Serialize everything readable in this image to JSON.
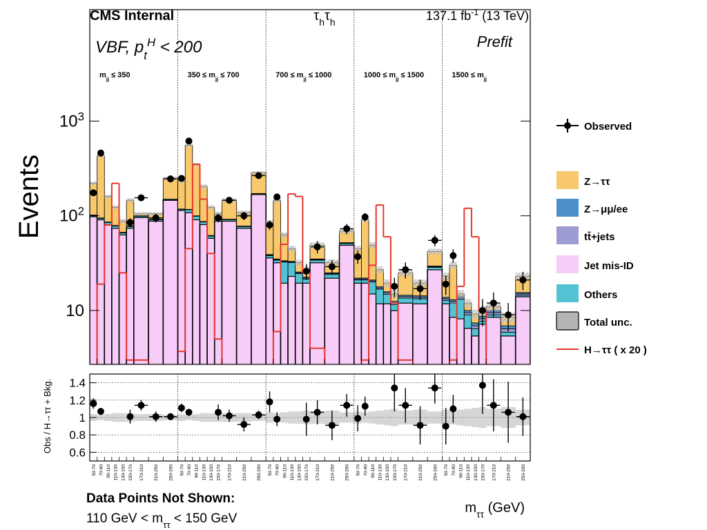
{
  "chart_data": {
    "type": "stacked-histogram",
    "experiment": "CMS Internal",
    "channel": [
      {
        "text": "τ"
      },
      {
        "text": "h",
        "shift": "sub"
      },
      {
        "text": "τ"
      },
      {
        "text": "h",
        "shift": "sub"
      }
    ],
    "lumi": [
      {
        "text": "137.1 fb"
      },
      {
        "text": "-1",
        "shift": "sup"
      },
      {
        "text": " (13 TeV)"
      }
    ],
    "category": [
      {
        "text": "VBF, p"
      },
      {
        "text": "t",
        "shift": "sub"
      },
      {
        "text": "H",
        "shift": "sup"
      },
      {
        "text": " < 200"
      }
    ],
    "stage": "Prefit",
    "ylabel": "Events",
    "ratio_ylabel": "Obs / H→ττ + Bkg.",
    "xlabel": [
      {
        "text": "m"
      },
      {
        "text": "ττ",
        "shift": "sub"
      },
      {
        "text": " (GeV)"
      }
    ],
    "note_title": "Data Points Not Shown:",
    "note": [
      {
        "text": "110 GeV < m"
      },
      {
        "text": "ττ",
        "shift": "sub"
      },
      {
        "text": " < 150 GeV"
      }
    ],
    "regions": [
      [
        {
          "text": "m"
        },
        {
          "text": "jj",
          "shift": "sub"
        },
        {
          "text": " ≤ 350"
        }
      ],
      [
        {
          "text": "350 ≤ m"
        },
        {
          "text": "jj",
          "shift": "sub"
        },
        {
          "text": " ≤ 700"
        }
      ],
      [
        {
          "text": "700 ≤ m"
        },
        {
          "text": "jj",
          "shift": "sub"
        },
        {
          "text": " ≤ 1000"
        }
      ],
      [
        {
          "text": "1000 ≤ m"
        },
        {
          "text": "jj",
          "shift": "sub"
        },
        {
          "text": " ≤ 1500"
        }
      ],
      [
        {
          "text": "1500 ≤ m"
        },
        {
          "text": "jj",
          "shift": "sub"
        }
      ]
    ],
    "bin_edges": [
      50,
      70,
      90,
      110,
      130,
      150,
      170,
      210,
      250,
      290
    ],
    "bin_labels": [
      "50-70",
      "70-90",
      "90-110",
      "110-130",
      "130-150",
      "150-170",
      "170-210",
      "210-250",
      "250-290"
    ],
    "log_y": true,
    "ylim": [
      2.7,
      15000
    ],
    "yticks": [
      10,
      {
        "value": 100,
        "label": [
          {
            "text": "10"
          },
          {
            "text": "2",
            "shift": "sup"
          }
        ]
      },
      {
        "value": 1000,
        "label": [
          {
            "text": "10"
          },
          {
            "text": "3",
            "shift": "sup"
          }
        ]
      }
    ],
    "ratio_ylim": [
      0.5,
      1.5
    ],
    "ratio_yticks": [
      0.6,
      0.8,
      1,
      1.2,
      1.4
    ],
    "ratio_grid": true,
    "series": [
      {
        "name": "Z→ττ",
        "color": "#f8c86c",
        "values": [
          [
            118,
            335,
            74,
            44,
            21,
            68,
            5,
            13,
            100
          ],
          [
            115,
            439,
            248,
            117,
            61,
            13,
            54,
            30,
            113
          ],
          [
            46,
            111,
            29.5,
            12,
            6.5,
            4.5,
            14,
            7,
            17
          ],
          [
            23,
            69,
            28,
            9.2,
            3.7,
            2.5,
            10.5,
            5.2,
            12.5
          ],
          [
            9.2,
            17,
            0.8,
            2,
            1.8,
            1.3,
            1,
            1.6,
            7.5
          ]
        ]
      },
      {
        "name": "Z→μμ/ee",
        "color": "#4b8fc8",
        "values": [
          [
            0.5,
            0.5,
            0.5,
            0.5,
            0.5,
            0.5,
            0.5,
            0.5,
            0.5
          ],
          [
            0.5,
            0.5,
            0.5,
            0.5,
            0.5,
            0.5,
            0.5,
            0.5,
            0.5
          ],
          [
            0.5,
            0.5,
            0.5,
            0.5,
            0.5,
            0.5,
            0.5,
            0.5,
            0.5
          ],
          [
            0.5,
            0.5,
            0.5,
            0.5,
            0.5,
            0.5,
            0.5,
            0.5,
            0.5
          ],
          [
            0.5,
            0.5,
            0.5,
            0.5,
            0.5,
            0.5,
            0.5,
            0.5,
            0.5
          ]
        ]
      },
      {
        "name": "tt̄+jets",
        "color": "#9c9cd2",
        "values": [
          [
            0.5,
            0.5,
            0.5,
            0.5,
            0.5,
            0.5,
            0.5,
            0.5,
            0.5
          ],
          [
            0.5,
            0.5,
            0.5,
            0.5,
            0.5,
            0.5,
            0.5,
            0.5,
            0.5
          ],
          [
            0.5,
            0.5,
            0.5,
            0.5,
            0.5,
            0.5,
            0.5,
            0.5,
            0.5
          ],
          [
            0.5,
            0.5,
            0.5,
            0.5,
            0.5,
            0.5,
            0.5,
            0.5,
            0.5
          ],
          [
            0.5,
            0.5,
            0.5,
            0.5,
            0.5,
            0.5,
            0.5,
            0.5,
            0.5
          ]
        ]
      },
      {
        "name": "Jet mis-ID",
        "color": "#f8ccf8",
        "values": [
          [
            98,
            91,
            81,
            74,
            63,
            74,
            96,
            88,
            146
          ],
          [
            114,
            108,
            91,
            81,
            58,
            88,
            88,
            74,
            168
          ],
          [
            36,
            32,
            19.5,
            23,
            19.5,
            19.5,
            32,
            22,
            49
          ],
          [
            19.5,
            19.5,
            15,
            11.8,
            11.8,
            10,
            12,
            11.8,
            27
          ],
          [
            11.8,
            8.5,
            8.2,
            6.5,
            5.4,
            7.2,
            8.5,
            5.4,
            14
          ]
        ]
      },
      {
        "name": "Others",
        "color": "#52c3d4",
        "values": [
          [
            3,
            3,
            4,
            4,
            3,
            3,
            3,
            3,
            3
          ],
          [
            3,
            8,
            8,
            5,
            3,
            3,
            3,
            3,
            3
          ],
          [
            2,
            2,
            13,
            9,
            5,
            2,
            2,
            2,
            2
          ],
          [
            1.5,
            1.5,
            5,
            5,
            3,
            1.5,
            1.5,
            1.5,
            1.5
          ],
          [
            1,
            3.5,
            5,
            2.5,
            1,
            0.5,
            0.5,
            0.5,
            0.5
          ]
        ]
      }
    ],
    "uncertainty": {
      "name": "Total unc.",
      "color": "#b4b4b4",
      "values": [
        [
          0.04,
          0.03,
          0.04,
          0.05,
          0.05,
          0.05,
          0.04,
          0.04,
          0.03
        ],
        [
          0.04,
          0.03,
          0.04,
          0.05,
          0.05,
          0.05,
          0.05,
          0.05,
          0.04
        ],
        [
          0.06,
          0.05,
          0.06,
          0.07,
          0.07,
          0.08,
          0.07,
          0.08,
          0.06
        ],
        [
          0.07,
          0.06,
          0.07,
          0.08,
          0.09,
          0.1,
          0.08,
          0.09,
          0.07
        ],
        [
          0.09,
          0.08,
          0.09,
          0.1,
          0.11,
          0.12,
          0.1,
          0.12,
          0.09
        ]
      ]
    },
    "signal": {
      "name": "H→ττ ( x 20 )",
      "color": "#e8352c",
      "values": [
        [
          1,
          19,
          80,
          220,
          25,
          3,
          3,
          1,
          1
        ],
        [
          3.7,
          45,
          350,
          150,
          40,
          5,
          1,
          1,
          1
        ],
        [
          1,
          6,
          50,
          170,
          160,
          25,
          4,
          1,
          1
        ],
        [
          1,
          3,
          30,
          130,
          60,
          12,
          3,
          1,
          1
        ],
        [
          1,
          3,
          18,
          120,
          60,
          10,
          2.5,
          1,
          1
        ]
      ]
    },
    "observed": {
      "name": "Observed",
      "color": "#000000",
      "values": [
        [
          175,
          460,
          null,
          null,
          null,
          85,
          155,
          95,
          245
        ],
        [
          248,
          615,
          null,
          null,
          null,
          95,
          146,
          100,
          266
        ],
        [
          80,
          158,
          null,
          null,
          null,
          26,
          47,
          29,
          73
        ],
        [
          37,
          97,
          null,
          null,
          null,
          18,
          27,
          17,
          55
        ],
        [
          19,
          38,
          null,
          null,
          null,
          10,
          12,
          9,
          21
        ]
      ],
      "errors": [
        [
          13,
          21,
          null,
          null,
          null,
          9,
          12,
          10,
          16
        ],
        [
          16,
          25,
          null,
          null,
          null,
          10,
          12,
          10,
          16
        ],
        [
          9,
          13,
          null,
          null,
          null,
          5,
          7,
          5,
          9
        ],
        [
          6,
          10,
          null,
          null,
          null,
          4.2,
          5.2,
          4.1,
          7.4
        ],
        [
          4.4,
          6.2,
          null,
          null,
          null,
          3.2,
          3.5,
          3,
          4.6
        ]
      ]
    },
    "ratio": {
      "values": [
        [
          1.16,
          1.07,
          null,
          null,
          null,
          1.01,
          1.14,
          1.01,
          1.01
        ],
        [
          1.11,
          1.06,
          null,
          null,
          null,
          1.06,
          1.02,
          0.92,
          1.03
        ],
        [
          1.18,
          0.98,
          null,
          null,
          null,
          0.98,
          1.06,
          0.91,
          1.14
        ],
        [
          0.99,
          1.13,
          null,
          null,
          null,
          1.34,
          1.14,
          0.91,
          1.34
        ],
        [
          0.9,
          1.1,
          null,
          null,
          null,
          1.37,
          1.14,
          1.06,
          1.01
        ]
      ],
      "errors": [
        [
          0.06,
          0.04,
          null,
          null,
          null,
          0.08,
          0.06,
          0.06,
          0.04
        ],
        [
          0.05,
          0.04,
          null,
          null,
          null,
          0.09,
          0.07,
          0.08,
          0.05
        ],
        [
          0.12,
          0.08,
          null,
          null,
          null,
          0.19,
          0.14,
          0.17,
          0.13
        ],
        [
          0.15,
          0.11,
          null,
          null,
          null,
          0.27,
          0.2,
          0.22,
          0.18
        ],
        [
          0.21,
          0.16,
          null,
          null,
          null,
          0.33,
          0.3,
          0.35,
          0.22
        ]
      ]
    }
  }
}
